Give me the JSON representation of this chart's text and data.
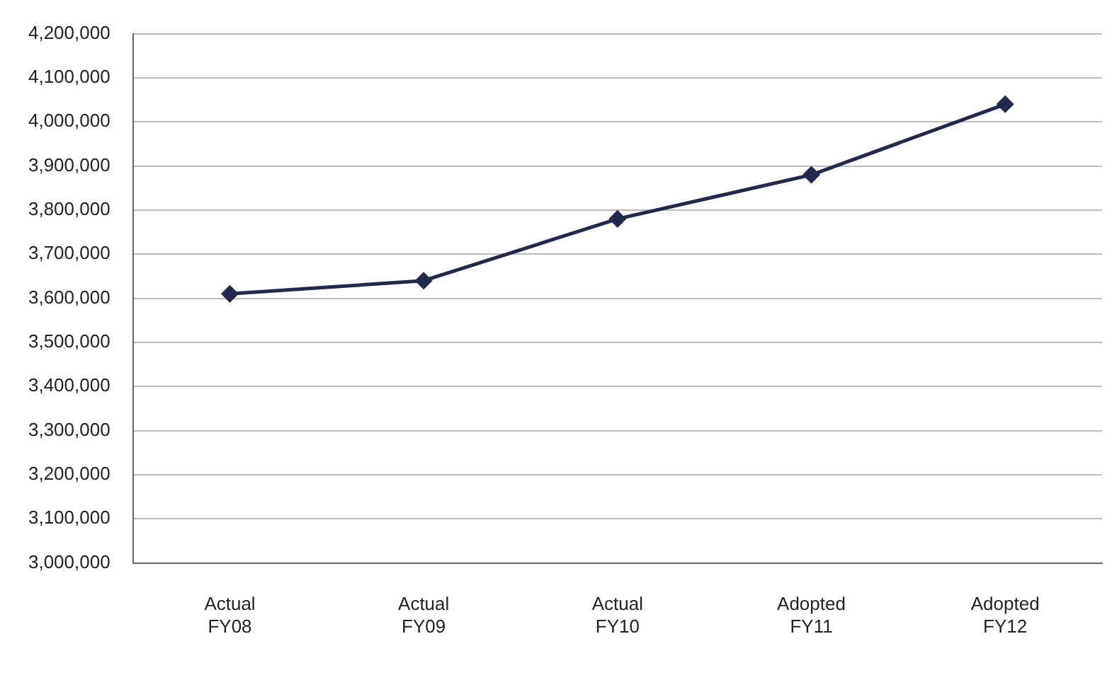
{
  "chart_data": {
    "type": "line",
    "categories": [
      "Actual FY08",
      "Actual FY09",
      "Actual FY10",
      "Adopted FY11",
      "Adopted FY12"
    ],
    "series": [
      {
        "color": "#1f2a4e",
        "values": [
          3610000,
          3640000,
          3780000,
          3880000,
          4040000
        ]
      }
    ],
    "ylim": [
      3000000,
      4200000
    ],
    "yticks": [
      {
        "value": 3000000,
        "label": "3,000,000"
      },
      {
        "value": 3100000,
        "label": "3,100,000"
      },
      {
        "value": 3200000,
        "label": "3,200,000"
      },
      {
        "value": 3300000,
        "label": "3,300,000"
      },
      {
        "value": 3400000,
        "label": "3,400,000"
      },
      {
        "value": 3500000,
        "label": "3,500,000"
      },
      {
        "value": 3600000,
        "label": "3,600,000"
      },
      {
        "value": 3700000,
        "label": "3,700,000"
      },
      {
        "value": 3800000,
        "label": "3,800,000"
      },
      {
        "value": 3900000,
        "label": "3,900,000"
      },
      {
        "value": 4000000,
        "label": "4,000,000"
      },
      {
        "value": 4100000,
        "label": "4,100,000"
      },
      {
        "value": 4200000,
        "label": "4,200,000"
      }
    ],
    "grid": "y",
    "marker": "diamond",
    "line_style": "solid"
  }
}
